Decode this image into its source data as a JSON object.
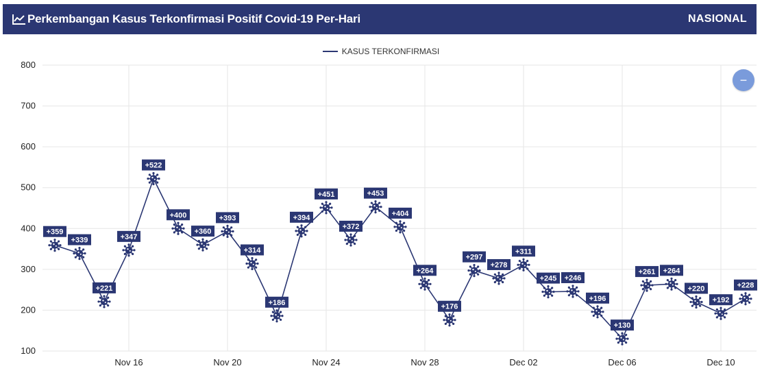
{
  "header": {
    "title": "Perkembangan Kasus Terkonfirmasi Positif Covid-19 Per-Hari",
    "scope": "NASIONAL",
    "icon": "line-chart-icon"
  },
  "zoom_button": {
    "label": "−",
    "icon": "minus-icon"
  },
  "colors": {
    "primary": "#2b3773",
    "zoom": "#7a9bdb"
  },
  "chart_data": {
    "type": "line",
    "series": [
      {
        "name": "KASUS TERKONFIRMASI",
        "x": [
          "2020-11-13",
          "2020-11-14",
          "2020-11-15",
          "2020-11-16",
          "2020-11-17",
          "2020-11-18",
          "2020-11-19",
          "2020-11-20",
          "2020-11-21",
          "2020-11-22",
          "2020-11-23",
          "2020-11-24",
          "2020-11-25",
          "2020-11-26",
          "2020-11-27",
          "2020-11-28",
          "2020-11-29",
          "2020-11-30",
          "2020-12-01",
          "2020-12-02",
          "2020-12-03",
          "2020-12-04",
          "2020-12-05",
          "2020-12-06",
          "2020-12-07",
          "2020-12-08",
          "2020-12-09",
          "2020-12-10",
          "2020-12-11"
        ],
        "values": [
          359,
          339,
          221,
          347,
          522,
          400,
          360,
          393,
          314,
          186,
          394,
          451,
          372,
          453,
          404,
          264,
          176,
          297,
          278,
          311,
          245,
          246,
          196,
          130,
          261,
          264,
          220,
          192,
          228
        ],
        "labels": [
          "+359",
          "+339",
          "+221",
          "+347",
          "+522",
          "+400",
          "+360",
          "+393",
          "+314",
          "+186",
          "+394",
          "+451",
          "+372",
          "+453",
          "+404",
          "+264",
          "+176",
          "+297",
          "+278",
          "+311",
          "+245",
          "+246",
          "+196",
          "+130",
          "+261",
          "+264",
          "+220",
          "+192",
          "+228"
        ]
      }
    ],
    "x_tick_labels": [
      "Nov 16",
      "Nov 20",
      "Nov 24",
      "Nov 28",
      "Dec 02",
      "Dec 06",
      "Dec 10"
    ],
    "y_ticks": [
      100,
      200,
      300,
      400,
      500,
      600,
      700,
      800
    ],
    "ylim": [
      100,
      800
    ],
    "grid": true,
    "legend_position": "top-center",
    "marker": "virus-icon"
  }
}
